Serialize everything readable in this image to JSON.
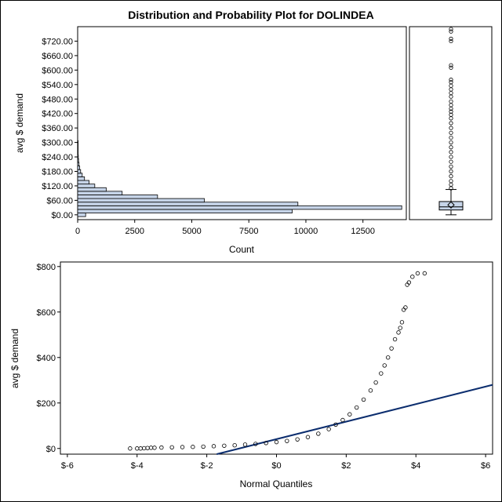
{
  "title": "Distribution and Probability Plot for DOLINDEA",
  "colors": {
    "bar_fill": "#c6d4e8",
    "line": "#0b2d6e",
    "axis": "#000000",
    "box_fill": "#c6d4e8"
  },
  "chart_data": [
    {
      "type": "bar",
      "orientation": "horizontal",
      "ylabel": "avg $ demand",
      "xlabel": "Count",
      "x_ticks": [
        "0",
        "2500",
        "5000",
        "7500",
        "10000",
        "12500"
      ],
      "y_ticks": [
        "$0.00",
        "$60.00",
        "$120.00",
        "$180.00",
        "$240.00",
        "$300.00",
        "$360.00",
        "$420.00",
        "$480.00",
        "$540.00",
        "$600.00",
        "$660.00",
        "$720.00"
      ],
      "xlim": [
        0,
        14400
      ],
      "ylim": [
        -20,
        780
      ],
      "bin_width": 15,
      "bin_centers": [
        0,
        15,
        30,
        45,
        60,
        75,
        90,
        105,
        120,
        135,
        150,
        165,
        180,
        195,
        210,
        225,
        240,
        255,
        270,
        285,
        300
      ],
      "values": [
        350,
        9400,
        14200,
        9650,
        5550,
        3500,
        1950,
        1250,
        750,
        500,
        300,
        200,
        130,
        90,
        60,
        40,
        30,
        20,
        12,
        8,
        5
      ]
    },
    {
      "type": "box",
      "ylim": [
        -20,
        780
      ],
      "q1": 20,
      "median": 33,
      "q3": 55,
      "mean": 41,
      "whisker_low": 0,
      "whisker_high": 105,
      "outliers": [
        110,
        125,
        140,
        160,
        180,
        200,
        220,
        240,
        260,
        280,
        300,
        320,
        340,
        360,
        380,
        400,
        415,
        428,
        440,
        455,
        470,
        490,
        505,
        520,
        535,
        550,
        560,
        610,
        620,
        720,
        730,
        760,
        770
      ]
    },
    {
      "type": "scatter",
      "title": "",
      "xlabel": "Normal Quantiles",
      "ylabel": "avg $ demand",
      "x_ticks": [
        "$-6",
        "$-4",
        "$-2",
        "$0",
        "$2",
        "$4",
        "$6"
      ],
      "y_ticks": [
        "$0",
        "$200",
        "$400",
        "$600",
        "$800"
      ],
      "xlim": [
        -6.2,
        6.2
      ],
      "ylim": [
        -25,
        820
      ],
      "reference_line": {
        "intercept": 41,
        "slope": 38.5
      },
      "points": [
        [
          -4.2,
          0
        ],
        [
          -4.0,
          0
        ],
        [
          -3.9,
          0
        ],
        [
          -3.8,
          1
        ],
        [
          -3.7,
          2
        ],
        [
          -3.6,
          3
        ],
        [
          -3.5,
          3
        ],
        [
          -3.3,
          4
        ],
        [
          -3.0,
          5
        ],
        [
          -2.7,
          6
        ],
        [
          -2.4,
          7
        ],
        [
          -2.1,
          8
        ],
        [
          -1.8,
          10
        ],
        [
          -1.5,
          12
        ],
        [
          -1.2,
          14
        ],
        [
          -0.9,
          17
        ],
        [
          -0.6,
          20
        ],
        [
          -0.3,
          24
        ],
        [
          0,
          28
        ],
        [
          0.3,
          33
        ],
        [
          0.6,
          40
        ],
        [
          0.9,
          50
        ],
        [
          1.2,
          65
        ],
        [
          1.5,
          85
        ],
        [
          1.7,
          105
        ],
        [
          1.9,
          125
        ],
        [
          2.1,
          150
        ],
        [
          2.3,
          180
        ],
        [
          2.5,
          215
        ],
        [
          2.7,
          255
        ],
        [
          2.85,
          290
        ],
        [
          3.0,
          330
        ],
        [
          3.1,
          365
        ],
        [
          3.2,
          400
        ],
        [
          3.3,
          440
        ],
        [
          3.4,
          480
        ],
        [
          3.5,
          510
        ],
        [
          3.55,
          530
        ],
        [
          3.6,
          555
        ],
        [
          3.65,
          610
        ],
        [
          3.7,
          620
        ],
        [
          3.75,
          720
        ],
        [
          3.8,
          730
        ],
        [
          3.9,
          755
        ],
        [
          4.05,
          770
        ],
        [
          4.25,
          770
        ]
      ]
    }
  ]
}
